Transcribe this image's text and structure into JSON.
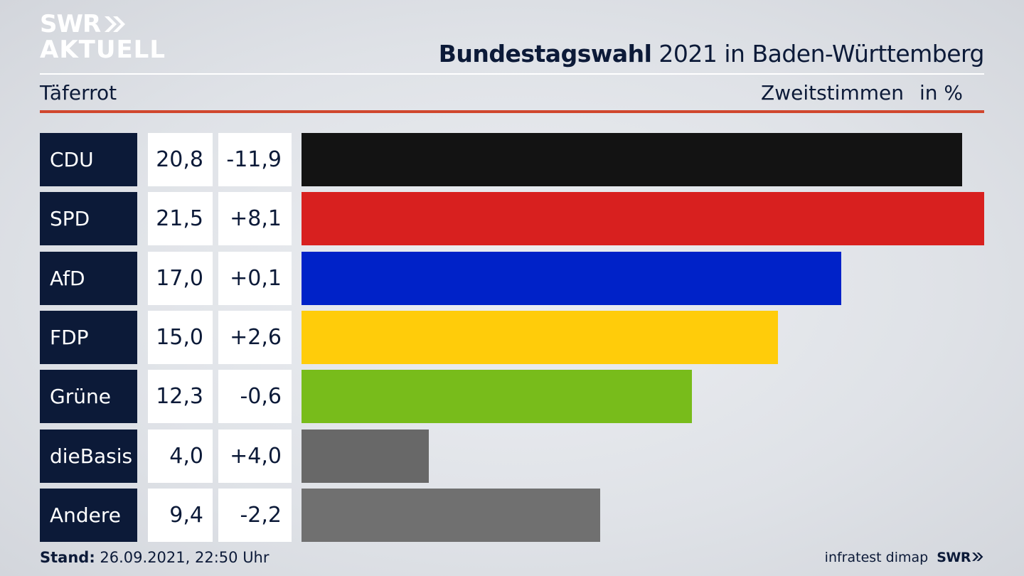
{
  "logo": {
    "line1": "SWR",
    "line2": "AKTUELL"
  },
  "header": {
    "title_bold": "Bundestagswahl",
    "title_rest": "2021 in Baden-Württemberg",
    "region": "Täferrot",
    "measure": "Zweitstimmen",
    "unit": "in %"
  },
  "chart_data": {
    "type": "bar",
    "orientation": "horizontal",
    "categories": [
      "CDU",
      "SPD",
      "AfD",
      "FDP",
      "Grüne",
      "dieBasis",
      "Andere"
    ],
    "series": [
      {
        "values": [
          20.8,
          21.5,
          17.0,
          15.0,
          12.3,
          4.0,
          9.4
        ]
      }
    ],
    "values_label": [
      "20,8",
      "21,5",
      "17,0",
      "15,0",
      "12,3",
      "4,0",
      "9,4"
    ],
    "changes": [
      -11.9,
      8.1,
      0.1,
      2.6,
      -0.6,
      4.0,
      -2.2
    ],
    "changes_label": [
      "-11,9",
      "+8,1",
      "+0,1",
      "+2,6",
      "-0,6",
      "+4,0",
      "-2,2"
    ],
    "colors": [
      "#131313",
      "#d8201f",
      "#0022c8",
      "#ffcc0a",
      "#78bc1b",
      "#686868",
      "#707070"
    ],
    "xlim": [
      0,
      21.5
    ]
  },
  "footer": {
    "stand_label": "Stand:",
    "stand_value": "26.09.2021, 22:50 Uhr",
    "source": "infratest dimap",
    "brand": "SWR"
  }
}
